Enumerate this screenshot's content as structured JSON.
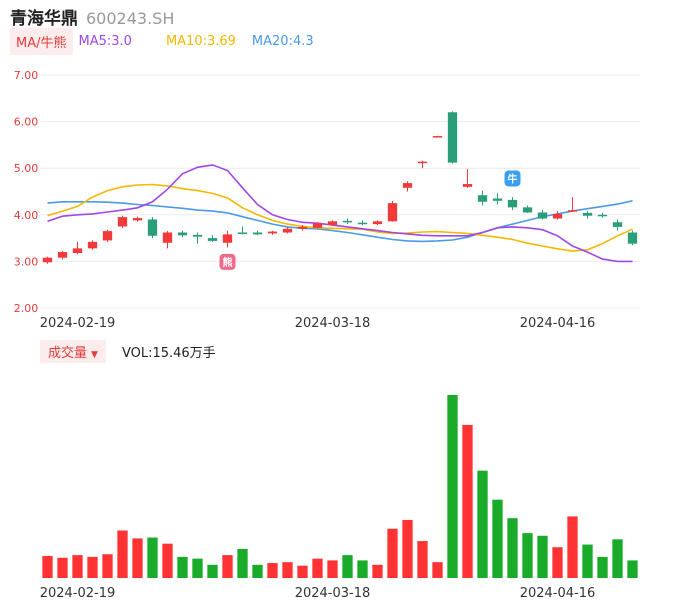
{
  "header": {
    "name": "青海华鼎",
    "code": "600243.SH"
  },
  "ma": {
    "badge": "MA/牛熊",
    "ma5": "MA5:3.0",
    "ma10": "MA10:3.69",
    "ma20": "MA20:4.3"
  },
  "volume": {
    "badge": "成交量",
    "caret": "▼",
    "text": "VOL:15.46万手"
  },
  "colors": {
    "up": "#f23a3a",
    "down": "#2a9d7a",
    "vol_up": "#ff3333",
    "vol_down": "#1aab2a",
    "ma5": "#a146e8",
    "ma10": "#f5b800",
    "ma20": "#4a9ae8"
  },
  "markers": {
    "bear": "熊",
    "bull": "牛"
  },
  "chart_data": {
    "type": "candlestick",
    "y_ticks": [
      "7.00",
      "6.00",
      "5.00",
      "4.00",
      "3.00",
      "2.00"
    ],
    "ylim": [
      2.0,
      7.0
    ],
    "x_tick_labels": [
      {
        "index": 2,
        "label": "2024-02-19"
      },
      {
        "index": 19,
        "label": "2024-03-18"
      },
      {
        "index": 34,
        "label": "2024-04-16"
      }
    ],
    "candles": [
      {
        "o": 2.98,
        "h": 3.1,
        "l": 2.95,
        "c": 3.08
      },
      {
        "o": 3.08,
        "h": 3.22,
        "l": 3.04,
        "c": 3.2
      },
      {
        "o": 3.18,
        "h": 3.42,
        "l": 3.15,
        "c": 3.28
      },
      {
        "o": 3.28,
        "h": 3.45,
        "l": 3.25,
        "c": 3.42
      },
      {
        "o": 3.45,
        "h": 3.68,
        "l": 3.42,
        "c": 3.65
      },
      {
        "o": 3.75,
        "h": 3.98,
        "l": 3.72,
        "c": 3.95
      },
      {
        "o": 3.88,
        "h": 3.96,
        "l": 3.85,
        "c": 3.93
      },
      {
        "o": 3.9,
        "h": 3.95,
        "l": 3.5,
        "c": 3.55
      },
      {
        "o": 3.4,
        "h": 3.65,
        "l": 3.28,
        "c": 3.62
      },
      {
        "o": 3.62,
        "h": 3.66,
        "l": 3.52,
        "c": 3.56
      },
      {
        "o": 3.57,
        "h": 3.62,
        "l": 3.38,
        "c": 3.53
      },
      {
        "o": 3.5,
        "h": 3.56,
        "l": 3.42,
        "c": 3.44
      },
      {
        "o": 3.4,
        "h": 3.66,
        "l": 3.3,
        "c": 3.58
      },
      {
        "o": 3.62,
        "h": 3.75,
        "l": 3.58,
        "c": 3.6
      },
      {
        "o": 3.62,
        "h": 3.66,
        "l": 3.56,
        "c": 3.58
      },
      {
        "o": 3.6,
        "h": 3.66,
        "l": 3.57,
        "c": 3.64
      },
      {
        "o": 3.62,
        "h": 3.74,
        "l": 3.6,
        "c": 3.7
      },
      {
        "o": 3.7,
        "h": 3.78,
        "l": 3.66,
        "c": 3.74
      },
      {
        "o": 3.72,
        "h": 3.84,
        "l": 3.7,
        "c": 3.82
      },
      {
        "o": 3.78,
        "h": 3.88,
        "l": 3.76,
        "c": 3.86
      },
      {
        "o": 3.87,
        "h": 3.92,
        "l": 3.8,
        "c": 3.85
      },
      {
        "o": 3.83,
        "h": 3.88,
        "l": 3.78,
        "c": 3.82
      },
      {
        "o": 3.8,
        "h": 3.88,
        "l": 3.78,
        "c": 3.86
      },
      {
        "o": 3.86,
        "h": 4.3,
        "l": 3.85,
        "c": 4.25
      },
      {
        "o": 4.58,
        "h": 4.72,
        "l": 4.5,
        "c": 4.68
      },
      {
        "o": 5.12,
        "h": 5.16,
        "l": 5.0,
        "c": 5.14
      },
      {
        "o": 5.68,
        "h": 5.7,
        "l": 5.66,
        "c": 5.69
      },
      {
        "o": 6.2,
        "h": 6.22,
        "l": 5.1,
        "c": 5.12
      },
      {
        "o": 4.6,
        "h": 4.98,
        "l": 4.58,
        "c": 4.66
      },
      {
        "o": 4.42,
        "h": 4.52,
        "l": 4.2,
        "c": 4.28
      },
      {
        "o": 4.35,
        "h": 4.46,
        "l": 4.22,
        "c": 4.3
      },
      {
        "o": 4.32,
        "h": 4.38,
        "l": 4.1,
        "c": 4.16
      },
      {
        "o": 4.16,
        "h": 4.2,
        "l": 4.04,
        "c": 4.05
      },
      {
        "o": 4.05,
        "h": 4.1,
        "l": 3.9,
        "c": 3.92
      },
      {
        "o": 3.92,
        "h": 4.08,
        "l": 3.9,
        "c": 4.02
      },
      {
        "o": 4.08,
        "h": 4.38,
        "l": 4.06,
        "c": 4.1
      },
      {
        "o": 4.04,
        "h": 4.08,
        "l": 3.92,
        "c": 3.98
      },
      {
        "o": 4.0,
        "h": 4.04,
        "l": 3.94,
        "c": 3.98
      },
      {
        "o": 3.84,
        "h": 3.9,
        "l": 3.66,
        "c": 3.74
      },
      {
        "o": 3.62,
        "h": 3.66,
        "l": 3.35,
        "c": 3.38
      }
    ],
    "ma5": [
      3.86,
      3.97,
      4.0,
      4.02,
      4.06,
      4.1,
      4.15,
      4.28,
      4.55,
      4.88,
      5.02,
      5.07,
      4.95,
      4.58,
      4.22,
      4.0,
      3.9,
      3.84,
      3.82,
      3.78,
      3.74,
      3.7,
      3.66,
      3.62,
      3.59,
      3.56,
      3.55,
      3.55,
      3.55,
      3.62,
      3.72,
      3.74,
      3.72,
      3.68,
      3.55,
      3.33,
      3.2,
      3.05,
      3.0,
      3.0
    ],
    "ma10": [
      3.98,
      4.08,
      4.18,
      4.38,
      4.52,
      4.6,
      4.64,
      4.65,
      4.62,
      4.56,
      4.52,
      4.46,
      4.36,
      4.15,
      4.0,
      3.88,
      3.8,
      3.75,
      3.72,
      3.71,
      3.7,
      3.69,
      3.63,
      3.6,
      3.61,
      3.63,
      3.64,
      3.62,
      3.6,
      3.56,
      3.52,
      3.47,
      3.39,
      3.33,
      3.27,
      3.22,
      3.25,
      3.38,
      3.55,
      3.69
    ],
    "ma20": [
      4.25,
      4.28,
      4.28,
      4.28,
      4.27,
      4.25,
      4.22,
      4.2,
      4.17,
      4.14,
      4.1,
      4.08,
      4.04,
      3.96,
      3.88,
      3.8,
      3.74,
      3.71,
      3.7,
      3.66,
      3.62,
      3.57,
      3.52,
      3.47,
      3.44,
      3.43,
      3.44,
      3.46,
      3.52,
      3.62,
      3.72,
      3.8,
      3.88,
      3.96,
      4.02,
      4.08,
      4.13,
      4.18,
      4.23,
      4.3
    ],
    "volumes": [
      2.5,
      2.3,
      2.6,
      2.4,
      2.7,
      5.4,
      4.5,
      4.6,
      3.9,
      2.4,
      2.2,
      1.5,
      2.6,
      3.3,
      1.5,
      1.7,
      1.8,
      1.4,
      2.2,
      2.0,
      2.6,
      2.0,
      1.5,
      5.6,
      6.6,
      4.2,
      1.8,
      20.8,
      17.4,
      12.2,
      8.9,
      6.8,
      5.1,
      4.8,
      3.5,
      7.0,
      3.8,
      2.4,
      4.4,
      2.0
    ]
  }
}
